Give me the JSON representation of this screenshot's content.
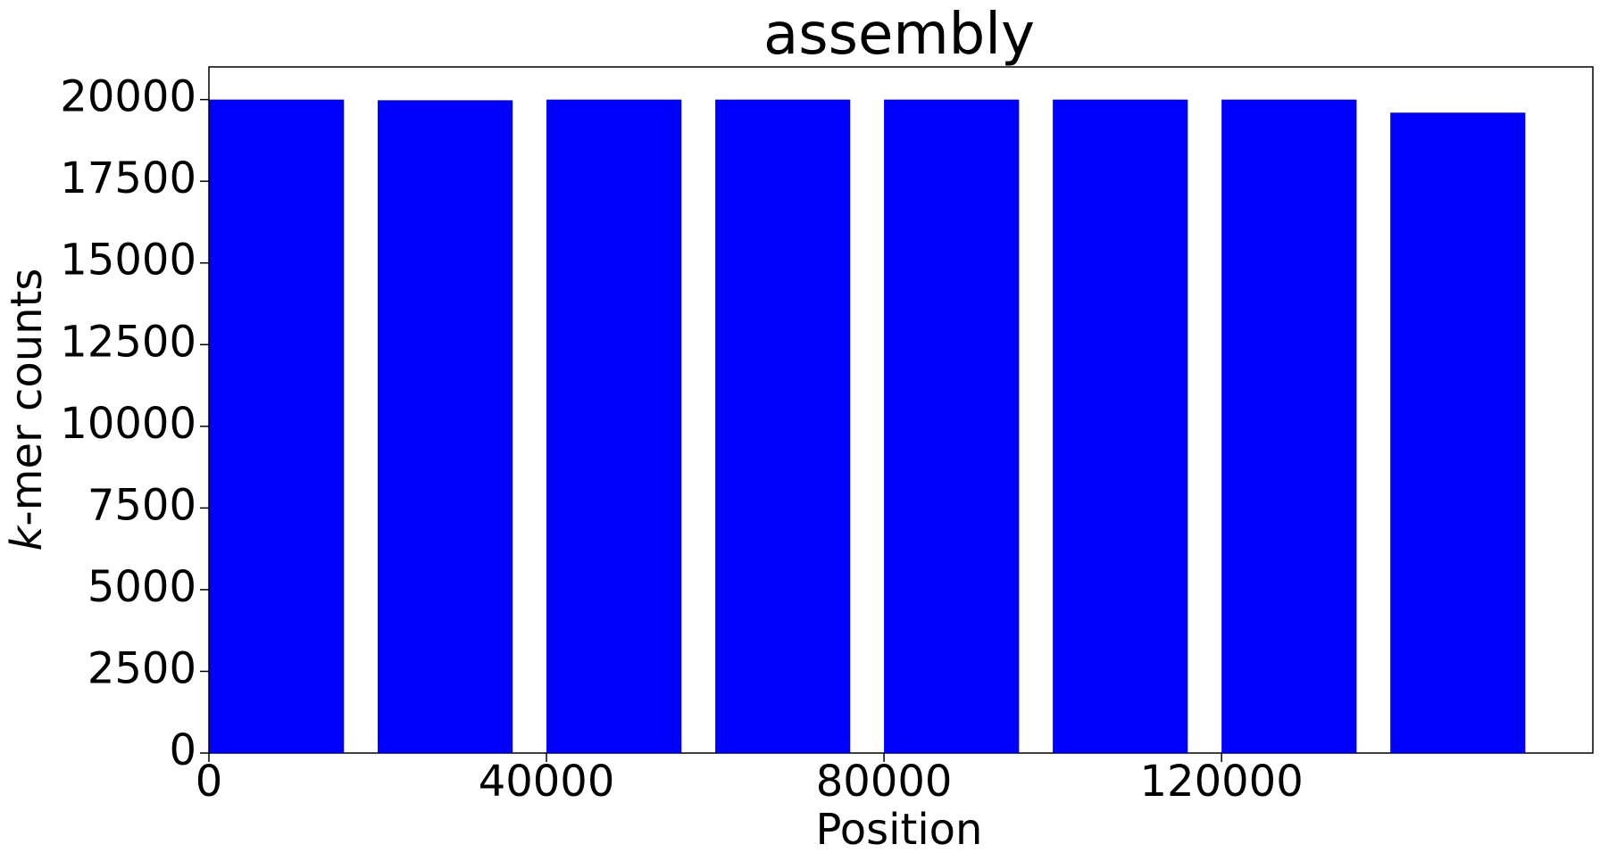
{
  "chart_data": {
    "type": "bar",
    "title": "assembly",
    "xlabel": "Position",
    "ylabel_italic_part": "k",
    "ylabel_rest": "-mer counts",
    "x": [
      0,
      20000,
      40000,
      60000,
      80000,
      100000,
      120000,
      140000
    ],
    "values": [
      20000,
      19980,
      20000,
      20000,
      20000,
      20000,
      20000,
      19600
    ],
    "bar_width": 16000,
    "xlim": [
      0,
      164000
    ],
    "ylim": [
      0,
      21000
    ],
    "xticks": [
      0,
      40000,
      80000,
      120000
    ],
    "xtick_labels": [
      "0",
      "40000",
      "80000",
      "120000"
    ],
    "yticks": [
      0,
      2500,
      5000,
      7500,
      10000,
      12500,
      15000,
      17500,
      20000
    ],
    "ytick_labels": [
      "0",
      "2500",
      "5000",
      "7500",
      "10000",
      "12500",
      "15000",
      "17500",
      "20000"
    ],
    "grid": false,
    "colors": {
      "bar": "#0000ff",
      "text": "#000000",
      "background": "#ffffff"
    }
  }
}
